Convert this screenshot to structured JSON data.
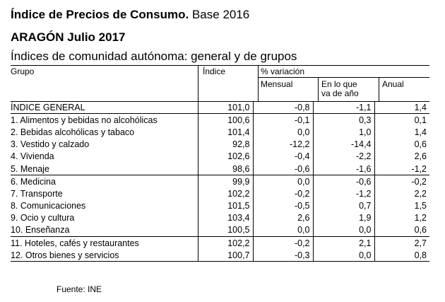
{
  "title": {
    "main": "Índice de Precios de Consumo.",
    "base": "Base 2016"
  },
  "subtitle": "ARAGÓN Julio 2017",
  "section_title": "Índices de comunidad autónoma: general y de grupos",
  "headers": {
    "grupo": "Grupo",
    "indice": "Índice",
    "variacion": "% variación",
    "mensual": "Mensual",
    "en_lo_que": "En lo que",
    "va_de_ano": "va de año",
    "anual": "Anual"
  },
  "rows": [
    {
      "label": "ÍNDICE GENERAL",
      "indice": "101,0",
      "mensual": "-0,8",
      "ano": "-1,1",
      "anual": "1,4"
    },
    {
      "label": "1. Alimentos y bebidas no alcohólicas",
      "indice": "100,6",
      "mensual": "-0,1",
      "ano": "0,3",
      "anual": "0,1"
    },
    {
      "label": "2. Bebidas alcohólicas y tabaco",
      "indice": "101,4",
      "mensual": "0,0",
      "ano": "1,0",
      "anual": "1,4"
    },
    {
      "label": "3. Vestido y calzado",
      "indice": "92,8",
      "mensual": "-12,2",
      "ano": "-14,4",
      "anual": "0,6"
    },
    {
      "label": "4. Vivienda",
      "indice": "102,6",
      "mensual": "-0,4",
      "ano": "-2,2",
      "anual": "2,6"
    },
    {
      "label": "5. Menaje",
      "indice": "98,6",
      "mensual": "-0,6",
      "ano": "-1,6",
      "anual": "-1,2"
    },
    {
      "label": "6. Medicina",
      "indice": "99,9",
      "mensual": "0,0",
      "ano": "-0,6",
      "anual": "-0,2"
    },
    {
      "label": "7. Transporte",
      "indice": "102,2",
      "mensual": "-0,2",
      "ano": "-1,2",
      "anual": "2,2"
    },
    {
      "label": "8. Comunicaciones",
      "indice": "101,5",
      "mensual": "-0,5",
      "ano": "0,7",
      "anual": "1,5"
    },
    {
      "label": "9. Ocio y cultura",
      "indice": "103,4",
      "mensual": "2,6",
      "ano": "1,9",
      "anual": "1,2"
    },
    {
      "label": "10. Enseñanza",
      "indice": "100,5",
      "mensual": "0,0",
      "ano": "0,0",
      "anual": "0,6"
    },
    {
      "label": "11. Hoteles, cafés y restaurantes",
      "indice": "102,2",
      "mensual": "-0,2",
      "ano": "2,1",
      "anual": "2,7"
    },
    {
      "label": "12. Otros bienes y servicios",
      "indice": "100,7",
      "mensual": "-0,3",
      "ano": "0,0",
      "anual": "0,8"
    }
  ],
  "source": "Fuente: INE"
}
